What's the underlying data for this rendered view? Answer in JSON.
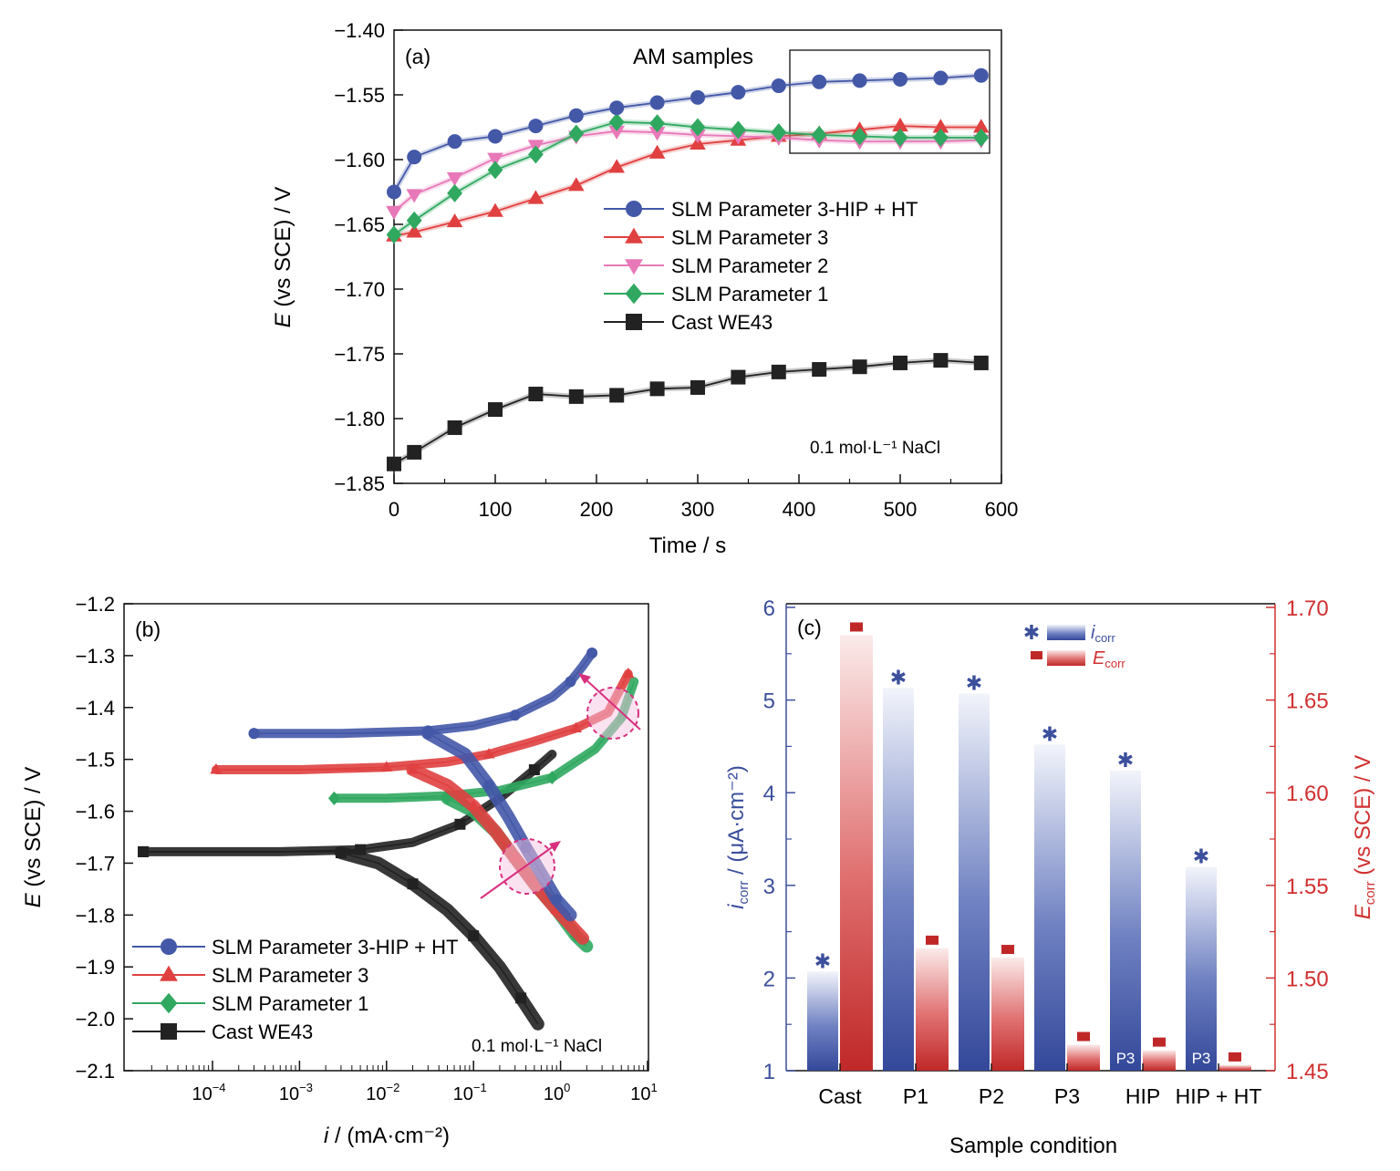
{
  "figure": {
    "panels": [
      {
        "id": "a",
        "panel_label": "(a)",
        "box_label": "AM samples",
        "condition": "0.1 mol·L⁻¹ NaCl",
        "xlabel": "Time / s",
        "ylabel_italic": "E",
        "ylabel_rest": " (vs SCE) / V",
        "xticks": [
          "0",
          "100",
          "200",
          "300",
          "400",
          "500",
          "600"
        ],
        "yticks": [
          "−1.40",
          "−1.55",
          "−1.60",
          "−1.65",
          "−1.70",
          "−1.75",
          "−1.80",
          "−1.85"
        ]
      },
      {
        "id": "b",
        "panel_label": "(b)",
        "condition": "0.1 mol·L⁻¹ NaCl",
        "xlabel_italic": "i",
        "xlabel_rest": " / (mA·cm⁻²)",
        "ylabel_italic": "E",
        "ylabel_rest": " (vs SCE) / V",
        "xticks": [
          {
            "base": "10",
            "exp": "−4"
          },
          {
            "base": "10",
            "exp": "−3"
          },
          {
            "base": "10",
            "exp": "−2"
          },
          {
            "base": "10",
            "exp": "−1"
          },
          {
            "base": "10",
            "exp": "0"
          },
          {
            "base": "10",
            "exp": "1"
          }
        ],
        "yticks": [
          "−1.2",
          "−1.3",
          "−1.4",
          "−1.5",
          "−1.6",
          "−1.7",
          "−1.8",
          "−1.9",
          "−2.0",
          "−2.1"
        ]
      },
      {
        "id": "c",
        "panel_label": "(c)",
        "xlabel": "Sample condition",
        "ylabel_left_italic": "i",
        "ylabel_left_sub": "corr",
        "ylabel_left_rest": " / (μA·cm⁻²)",
        "ylabel_right_italic": "E",
        "ylabel_right_sub": "corr",
        "ylabel_right_rest": " (vs SCE) / V",
        "legend_i_italic": "i",
        "legend_i_sub": "corr",
        "legend_e_italic": "E",
        "legend_e_sub": "corr",
        "bar_inner_label": "P3",
        "yticks_left": [
          "1",
          "2",
          "3",
          "4",
          "5",
          "6"
        ],
        "yticks_right": [
          "1.45",
          "1.50",
          "1.55",
          "1.60",
          "1.65",
          "1.70"
        ]
      }
    ]
  },
  "chart_data": [
    {
      "type": "line",
      "title": "(a)",
      "xlabel": "Time / s",
      "ylabel": "E (vs SCE) / V",
      "xlim": [
        0,
        600
      ],
      "ylim": [
        -1.85,
        -1.4
      ],
      "y_axis_break": [
        -1.53,
        -1.44
      ],
      "grid": false,
      "legend_position": "center-right",
      "annotation": "0.1 mol·L⁻¹ NaCl",
      "series": [
        {
          "name": "SLM Parameter 3-HIP + HT",
          "color": "#4458a8",
          "marker": "circle",
          "x": [
            0,
            20,
            60,
            100,
            140,
            180,
            220,
            260,
            300,
            340,
            380,
            420,
            460,
            500,
            540,
            580
          ],
          "y": [
            -1.625,
            -1.598,
            -1.586,
            -1.582,
            -1.574,
            -1.566,
            -1.56,
            -1.556,
            -1.552,
            -1.548,
            -1.543,
            -1.54,
            -1.539,
            -1.538,
            -1.537,
            -1.535
          ]
        },
        {
          "name": "SLM Parameter 3",
          "color": "#e04040",
          "marker": "triangle-up",
          "x": [
            0,
            20,
            60,
            100,
            140,
            180,
            220,
            260,
            300,
            340,
            380,
            420,
            460,
            500,
            540,
            580
          ],
          "y": [
            -1.659,
            -1.656,
            -1.648,
            -1.64,
            -1.63,
            -1.62,
            -1.606,
            -1.595,
            -1.588,
            -1.585,
            -1.582,
            -1.58,
            -1.577,
            -1.574,
            -1.575,
            -1.575
          ]
        },
        {
          "name": "SLM Parameter 2",
          "color": "#e878b8",
          "marker": "triangle-down",
          "x": [
            0,
            20,
            60,
            100,
            140,
            180,
            220,
            260,
            300,
            340,
            380,
            420,
            460,
            500,
            540,
            580
          ],
          "y": [
            -1.64,
            -1.627,
            -1.614,
            -1.599,
            -1.589,
            -1.582,
            -1.578,
            -1.579,
            -1.581,
            -1.582,
            -1.583,
            -1.585,
            -1.586,
            -1.586,
            -1.586,
            -1.585
          ]
        },
        {
          "name": "SLM Parameter 1",
          "color": "#30a860",
          "marker": "diamond",
          "x": [
            0,
            20,
            60,
            100,
            140,
            180,
            220,
            260,
            300,
            340,
            380,
            420,
            460,
            500,
            540,
            580
          ],
          "y": [
            -1.658,
            -1.647,
            -1.626,
            -1.608,
            -1.596,
            -1.58,
            -1.571,
            -1.572,
            -1.575,
            -1.577,
            -1.579,
            -1.581,
            -1.582,
            -1.583,
            -1.583,
            -1.583
          ]
        },
        {
          "name": "Cast WE43",
          "color": "#222222",
          "marker": "square",
          "x": [
            0,
            20,
            60,
            100,
            140,
            180,
            220,
            260,
            300,
            340,
            380,
            420,
            460,
            500,
            540,
            580
          ],
          "y": [
            -1.835,
            -1.826,
            -1.807,
            -1.793,
            -1.781,
            -1.783,
            -1.782,
            -1.777,
            -1.776,
            -1.768,
            -1.764,
            -1.762,
            -1.76,
            -1.757,
            -1.755,
            -1.757
          ]
        }
      ]
    },
    {
      "type": "line",
      "title": "(b)",
      "xlabel": "i / (mA·cm⁻²)",
      "ylabel": "E (vs SCE) / V",
      "x_scale": "log",
      "xlim": [
        1e-05,
        10
      ],
      "ylim": [
        -2.1,
        -1.2
      ],
      "grid": false,
      "legend_position": "bottom-left",
      "annotation": "0.1 mol·L⁻¹ NaCl",
      "series": [
        {
          "name": "SLM Parameter 3-HIP + HT",
          "color": "#4458a8",
          "marker": "circle",
          "anodic": {
            "i": [
              0.0003,
              0.003,
              0.03,
              0.1,
              0.3,
              0.8,
              1.3,
              1.8,
              2.3
            ],
            "E": [
              -1.45,
              -1.45,
              -1.445,
              -1.435,
              -1.415,
              -1.38,
              -1.35,
              -1.32,
              -1.295
            ]
          },
          "cathodic": {
            "i": [
              0.03,
              0.08,
              0.15,
              0.25,
              0.4,
              0.6,
              0.9,
              1.3
            ],
            "E": [
              -1.45,
              -1.49,
              -1.55,
              -1.61,
              -1.67,
              -1.72,
              -1.77,
              -1.8
            ]
          }
        },
        {
          "name": "SLM Parameter 3",
          "color": "#e04040",
          "marker": "triangle-up",
          "anodic": {
            "i": [
              0.00011,
              0.001,
              0.01,
              0.05,
              0.15,
              0.5,
              1.5,
              3.5,
              6.0
            ],
            "E": [
              -1.52,
              -1.52,
              -1.515,
              -1.505,
              -1.49,
              -1.465,
              -1.44,
              -1.41,
              -1.335
            ]
          },
          "cathodic": {
            "i": [
              0.02,
              0.05,
              0.1,
              0.18,
              0.3,
              0.5,
              0.9,
              1.8
            ],
            "E": [
              -1.52,
              -1.55,
              -1.59,
              -1.64,
              -1.69,
              -1.74,
              -1.79,
              -1.845
            ]
          }
        },
        {
          "name": "SLM Parameter 1",
          "color": "#30a860",
          "marker": "diamond",
          "anodic": {
            "i": [
              0.0025,
              0.01,
              0.05,
              0.2,
              0.8,
              2.5,
              5.0,
              7.0
            ],
            "E": [
              -1.575,
              -1.575,
              -1.57,
              -1.56,
              -1.535,
              -1.48,
              -1.42,
              -1.35
            ]
          },
          "cathodic": {
            "i": [
              0.05,
              0.1,
              0.18,
              0.3,
              0.5,
              0.9,
              1.5,
              2.0
            ],
            "E": [
              -1.575,
              -1.6,
              -1.64,
              -1.69,
              -1.74,
              -1.79,
              -1.84,
              -1.86
            ]
          }
        },
        {
          "name": "Cast WE43",
          "color": "#222222",
          "marker": "square",
          "anodic": {
            "i": [
              1.6e-05,
              0.0006,
              0.005,
              0.02,
              0.07,
              0.2,
              0.5,
              0.8
            ],
            "E": [
              -1.678,
              -1.678,
              -1.674,
              -1.66,
              -1.625,
              -1.575,
              -1.52,
              -1.49
            ]
          },
          "cathodic": {
            "i": [
              0.003,
              0.008,
              0.02,
              0.05,
              0.1,
              0.2,
              0.35,
              0.55
            ],
            "E": [
              -1.68,
              -1.7,
              -1.74,
              -1.79,
              -1.84,
              -1.9,
              -1.96,
              -2.01
            ]
          }
        }
      ]
    },
    {
      "type": "bar",
      "title": "(c)",
      "xlabel": "Sample condition",
      "categories": [
        "Cast",
        "P1",
        "P2",
        "P3",
        "HIP",
        "HIP + HT"
      ],
      "grid": false,
      "legend_position": "top-center",
      "series": [
        {
          "name": "i_corr",
          "axis": "left",
          "unit": "μA·cm⁻²",
          "color": "#3c4f9c",
          "values": [
            2.07,
            5.13,
            5.07,
            4.52,
            4.24,
            3.2
          ]
        },
        {
          "name": "E_corr",
          "axis": "right",
          "unit": "V (vs SCE)",
          "color": "#d03030",
          "values": [
            1.685,
            1.516,
            1.511,
            1.464,
            1.461,
            1.453
          ]
        }
      ],
      "ylim_left": [
        1,
        6
      ],
      "ylim_right": [
        1.45,
        1.7
      ]
    }
  ]
}
